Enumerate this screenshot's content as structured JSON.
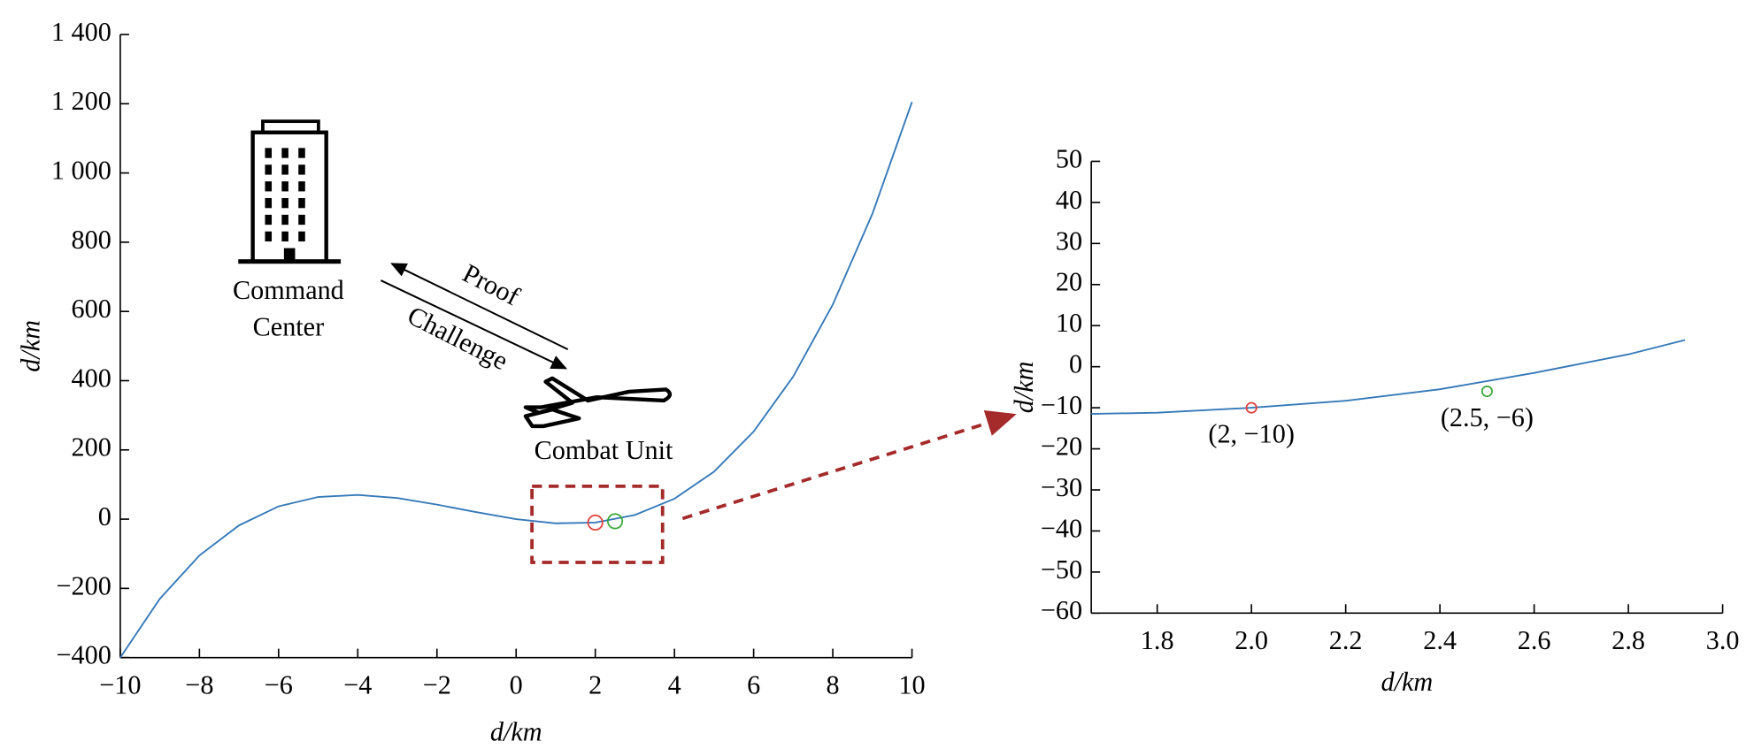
{
  "chart_data": [
    {
      "type": "line",
      "xlabel": "d/km",
      "ylabel": "d/km",
      "x": [
        -10,
        -9,
        -8,
        -7,
        -6,
        -5,
        -4,
        -3,
        -2,
        -1,
        0,
        1,
        2,
        3,
        4,
        5,
        6,
        7,
        8,
        9,
        10
      ],
      "series": [
        {
          "color": "#3579b8",
          "values": [
            -400,
            -230,
            -105,
            -18,
            37,
            64,
            70,
            61,
            42,
            20,
            0,
            -12,
            -10,
            12,
            59,
            137,
            253,
            412,
            620,
            882,
            1205
          ]
        }
      ],
      "markers": [
        {
          "x": 2,
          "y": -10,
          "color": "#e0403a"
        },
        {
          "x": 2.5,
          "y": -6,
          "color": "#3aa83a"
        }
      ],
      "zoom_box": {
        "xlim": [
          0.4,
          3.7
        ],
        "ylim": [
          -125,
          95
        ],
        "color": "#a52a2a"
      },
      "xlim": [
        -10,
        10
      ],
      "ylim": [
        -400,
        1400
      ],
      "xticks": [
        {
          "value": -10,
          "label": "−10"
        },
        {
          "value": -8,
          "label": "−8"
        },
        {
          "value": -6,
          "label": "−6"
        },
        {
          "value": -4,
          "label": "−4"
        },
        {
          "value": -2,
          "label": "−2"
        },
        0,
        2,
        4,
        6,
        8,
        10
      ],
      "yticks": [
        {
          "value": -400,
          "label": "−400"
        },
        {
          "value": -200,
          "label": "−200"
        },
        0,
        200,
        400,
        600,
        800,
        {
          "value": 1000,
          "label": "1 000"
        },
        {
          "value": 1200,
          "label": "1 200"
        },
        {
          "value": 1400,
          "label": "1 400"
        }
      ],
      "annotations": {
        "command_center": [
          "Command",
          "Center"
        ],
        "proof": "Proof",
        "challenge": "Challenge",
        "combat_unit": "Combat Unit"
      }
    },
    {
      "type": "line",
      "xlabel": "d/km",
      "ylabel": "d/km",
      "x": [
        1.66,
        1.8,
        2.0,
        2.2,
        2.4,
        2.6,
        2.8,
        2.92
      ],
      "series": [
        {
          "color": "#3579b8",
          "values": [
            -11.5,
            -11.2,
            -10,
            -8.3,
            -5.5,
            -1.5,
            3,
            6.5
          ]
        }
      ],
      "markers": [
        {
          "x": 2,
          "y": -10,
          "color": "#e0403a",
          "label": "(2, −10)"
        },
        {
          "x": 2.5,
          "y": -6,
          "color": "#3aa83a",
          "label": "(2.5, −6)"
        }
      ],
      "xlim": [
        1.66,
        3.0
      ],
      "ylim": [
        -60,
        50
      ],
      "xticks": [
        1.8,
        {
          "value": 2,
          "label": "2.0"
        },
        2.2,
        2.4,
        2.6,
        2.8,
        {
          "value": 3,
          "label": "3.0"
        }
      ],
      "yticks": [
        {
          "value": -60,
          "label": "−60"
        },
        {
          "value": -50,
          "label": "−50"
        },
        {
          "value": -40,
          "label": "−40"
        },
        {
          "value": -30,
          "label": "−30"
        },
        {
          "value": -20,
          "label": "−20"
        },
        {
          "value": -10,
          "label": "−10"
        },
        0,
        10,
        20,
        30,
        40,
        50
      ]
    }
  ]
}
